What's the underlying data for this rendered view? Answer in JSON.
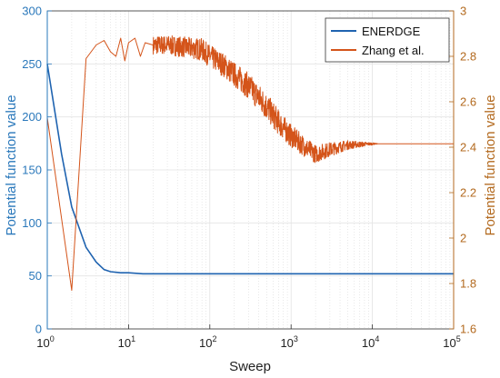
{
  "chart_data": {
    "type": "line",
    "xlabel": "Sweep",
    "ylabel_left": "Potential function value",
    "ylabel_right": "Potential function value",
    "xscale": "log",
    "xlim": [
      1,
      100000
    ],
    "ylim_left": [
      0,
      300
    ],
    "ylim_right": [
      1.6,
      3.0
    ],
    "grid": true,
    "legend_position": "top-right",
    "x_ticks": [
      {
        "value": 1,
        "base": "10",
        "exp": "0"
      },
      {
        "value": 10,
        "base": "10",
        "exp": "1"
      },
      {
        "value": 100,
        "base": "10",
        "exp": "2"
      },
      {
        "value": 1000,
        "base": "10",
        "exp": "3"
      },
      {
        "value": 10000,
        "base": "10",
        "exp": "4"
      },
      {
        "value": 100000,
        "base": "10",
        "exp": "5"
      }
    ],
    "y_left_ticks": [
      0,
      50,
      100,
      150,
      200,
      250,
      300
    ],
    "y_right_ticks": [
      "1.6",
      "1.8",
      "2",
      "2.2",
      "2.4",
      "2.6",
      "2.8",
      "3"
    ],
    "colors": {
      "left_axis": "#2a78bb",
      "right_axis": "#b36a1f",
      "series_1": "#1f63b0",
      "series_2": "#d4541a"
    },
    "series": [
      {
        "name": "ENERDGE",
        "axis": "left",
        "points": [
          [
            1,
            250
          ],
          [
            1.5,
            165
          ],
          [
            2,
            115
          ],
          [
            3,
            77
          ],
          [
            4,
            63
          ],
          [
            5,
            56
          ],
          [
            6,
            54
          ],
          [
            8,
            53
          ],
          [
            10,
            53
          ],
          [
            15,
            52
          ],
          [
            30,
            52
          ],
          [
            100,
            52
          ],
          [
            1000,
            52
          ],
          [
            10000,
            52
          ],
          [
            100000,
            52
          ]
        ]
      },
      {
        "name": "Zhang et al.",
        "axis": "right",
        "points": [
          [
            1,
            2.53
          ],
          [
            2,
            1.77
          ],
          [
            3,
            2.79
          ],
          [
            4,
            2.85
          ],
          [
            5,
            2.87
          ],
          [
            6,
            2.82
          ],
          [
            7,
            2.8
          ],
          [
            8,
            2.88
          ],
          [
            9,
            2.78
          ],
          [
            10,
            2.86
          ],
          [
            12,
            2.88
          ],
          [
            14,
            2.8
          ],
          [
            16,
            2.86
          ],
          [
            20,
            2.85
          ],
          [
            30,
            2.85
          ],
          [
            50,
            2.84
          ],
          [
            80,
            2.83
          ],
          [
            100,
            2.8
          ],
          [
            150,
            2.76
          ],
          [
            200,
            2.72
          ],
          [
            300,
            2.67
          ],
          [
            500,
            2.58
          ],
          [
            700,
            2.51
          ],
          [
            1000,
            2.45
          ],
          [
            1500,
            2.4
          ],
          [
            2000,
            2.37
          ],
          [
            3000,
            2.39
          ],
          [
            5000,
            2.41
          ],
          [
            10000,
            2.415
          ],
          [
            100000,
            2.415
          ]
        ],
        "noise_band": [
          [
            20,
            0.04
          ],
          [
            100,
            0.05
          ],
          [
            500,
            0.06
          ],
          [
            1000,
            0.05
          ],
          [
            2000,
            0.04
          ],
          [
            5000,
            0.02
          ],
          [
            10000,
            0.005
          ],
          [
            12000,
            0
          ]
        ]
      }
    ]
  }
}
